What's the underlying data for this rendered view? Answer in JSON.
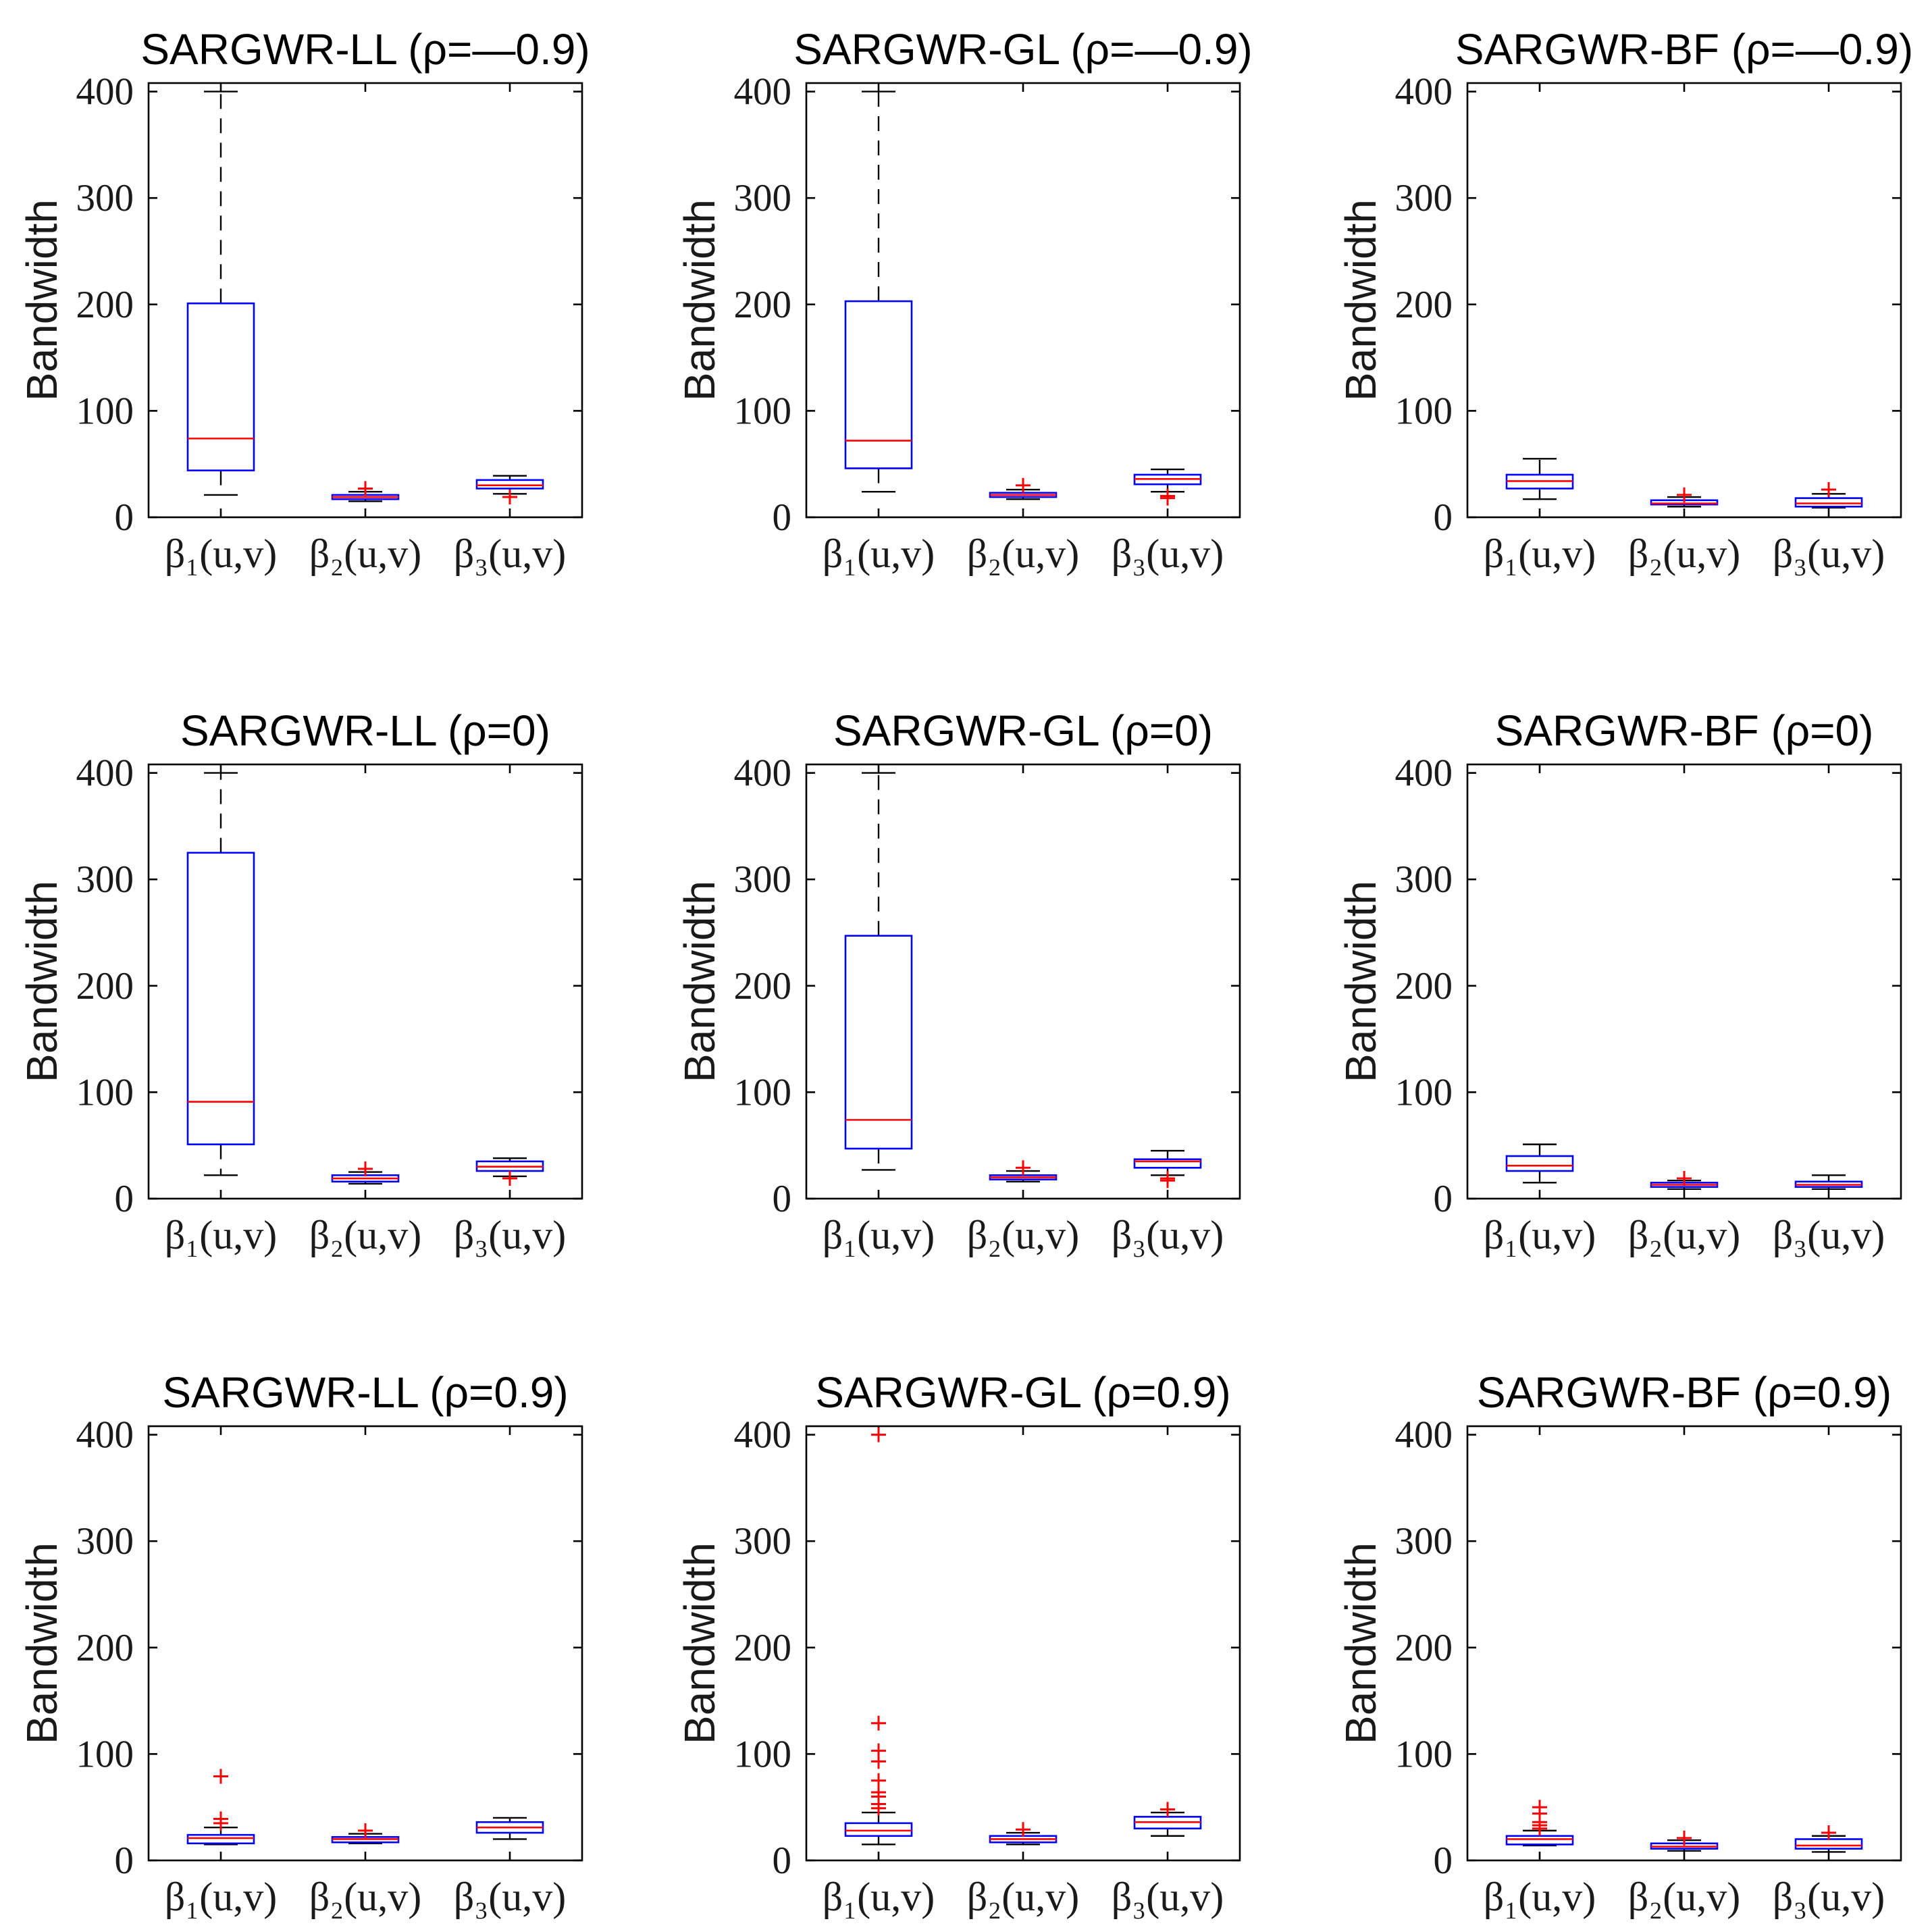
{
  "colors": {
    "box": "#0000FF",
    "median": "#FF0000",
    "whisker": "#000000",
    "outlier": "#FF0000",
    "axes": "#000000",
    "text": "#1A1A1A",
    "background": "#FFFFFF"
  },
  "chart_data": [
    {
      "type": "boxplot",
      "title": "SARGWR-LL (ρ=—0.9)",
      "xlabel": "",
      "ylabel": "Bandwidth",
      "categories": [
        "β₁(u,v)",
        "β₂(u,v)",
        "β₃(u,v)"
      ],
      "ylim": [
        0,
        408
      ],
      "yticks": [
        0,
        100,
        200,
        300,
        400
      ],
      "grid": false,
      "boxes": [
        {
          "whisker_low": 21,
          "q1": 44,
          "median": 74,
          "q3": 201,
          "whisker_high": 400,
          "outliers": []
        },
        {
          "whisker_low": 15,
          "q1": 17,
          "median": 19,
          "q3": 21,
          "whisker_high": 24,
          "outliers": [
            27
          ]
        },
        {
          "whisker_low": 22,
          "q1": 27,
          "median": 30,
          "q3": 35,
          "whisker_high": 39,
          "outliers": [
            19
          ]
        }
      ]
    },
    {
      "type": "boxplot",
      "title": "SARGWR-GL (ρ=—0.9)",
      "xlabel": "",
      "ylabel": "Bandwidth",
      "categories": [
        "β₁(u,v)",
        "β₂(u,v)",
        "β₃(u,v)"
      ],
      "ylim": [
        0,
        408
      ],
      "yticks": [
        0,
        100,
        200,
        300,
        400
      ],
      "grid": false,
      "boxes": [
        {
          "whisker_low": 24,
          "q1": 46,
          "median": 72,
          "q3": 203,
          "whisker_high": 400,
          "outliers": []
        },
        {
          "whisker_low": 17,
          "q1": 19,
          "median": 21,
          "q3": 23,
          "whisker_high": 26,
          "outliers": [
            30
          ]
        },
        {
          "whisker_low": 24,
          "q1": 31,
          "median": 36,
          "q3": 40,
          "whisker_high": 45,
          "outliers": [
            20,
            18
          ]
        }
      ]
    },
    {
      "type": "boxplot",
      "title": "SARGWR-BF (ρ=—0.9)",
      "xlabel": "",
      "ylabel": "Bandwidth",
      "categories": [
        "β₁(u,v)",
        "β₂(u,v)",
        "β₃(u,v)"
      ],
      "ylim": [
        0,
        408
      ],
      "yticks": [
        0,
        100,
        200,
        300,
        400
      ],
      "grid": false,
      "boxes": [
        {
          "whisker_low": 17,
          "q1": 27,
          "median": 34,
          "q3": 40,
          "whisker_high": 55,
          "outliers": []
        },
        {
          "whisker_low": 10,
          "q1": 12,
          "median": 13,
          "q3": 16,
          "whisker_high": 19,
          "outliers": [
            21
          ]
        },
        {
          "whisker_low": 9,
          "q1": 10,
          "median": 13,
          "q3": 18,
          "whisker_high": 22,
          "outliers": [
            26
          ]
        }
      ]
    },
    {
      "type": "boxplot",
      "title": "SARGWR-LL (ρ=0)",
      "xlabel": "",
      "ylabel": "Bandwidth",
      "categories": [
        "β₁(u,v)",
        "β₂(u,v)",
        "β₃(u,v)"
      ],
      "ylim": [
        0,
        408
      ],
      "yticks": [
        0,
        100,
        200,
        300,
        400
      ],
      "grid": false,
      "boxes": [
        {
          "whisker_low": 22,
          "q1": 51,
          "median": 91,
          "q3": 325,
          "whisker_high": 400,
          "outliers": []
        },
        {
          "whisker_low": 14,
          "q1": 16,
          "median": 19,
          "q3": 22,
          "whisker_high": 25,
          "outliers": [
            28
          ]
        },
        {
          "whisker_low": 21,
          "q1": 26,
          "median": 30,
          "q3": 35,
          "whisker_high": 38,
          "outliers": [
            19
          ]
        }
      ]
    },
    {
      "type": "boxplot",
      "title": "SARGWR-GL (ρ=0)",
      "xlabel": "",
      "ylabel": "Bandwidth",
      "categories": [
        "β₁(u,v)",
        "β₂(u,v)",
        "β₃(u,v)"
      ],
      "ylim": [
        0,
        408
      ],
      "yticks": [
        0,
        100,
        200,
        300,
        400
      ],
      "grid": false,
      "boxes": [
        {
          "whisker_low": 27,
          "q1": 47,
          "median": 74,
          "q3": 247,
          "whisker_high": 400,
          "outliers": []
        },
        {
          "whisker_low": 16,
          "q1": 18,
          "median": 20,
          "q3": 22,
          "whisker_high": 26,
          "outliers": [
            29
          ]
        },
        {
          "whisker_low": 22,
          "q1": 29,
          "median": 35,
          "q3": 37,
          "whisker_high": 45,
          "outliers": [
            19,
            17
          ]
        }
      ]
    },
    {
      "type": "boxplot",
      "title": "SARGWR-BF (ρ=0)",
      "xlabel": "",
      "ylabel": "Bandwidth",
      "categories": [
        "β₁(u,v)",
        "β₂(u,v)",
        "β₃(u,v)"
      ],
      "ylim": [
        0,
        408
      ],
      "yticks": [
        0,
        100,
        200,
        300,
        400
      ],
      "grid": false,
      "boxes": [
        {
          "whisker_low": 15,
          "q1": 26,
          "median": 31,
          "q3": 40,
          "whisker_high": 51,
          "outliers": []
        },
        {
          "whisker_low": 9,
          "q1": 11,
          "median": 13,
          "q3": 15,
          "whisker_high": 17,
          "outliers": [
            19
          ]
        },
        {
          "whisker_low": 9,
          "q1": 11,
          "median": 13,
          "q3": 16,
          "whisker_high": 22,
          "outliers": []
        }
      ]
    },
    {
      "type": "boxplot",
      "title": "SARGWR-LL (ρ=0.9)",
      "xlabel": "",
      "ylabel": "Bandwidth",
      "categories": [
        "β₁(u,v)",
        "β₂(u,v)",
        "β₃(u,v)"
      ],
      "ylim": [
        0,
        408
      ],
      "yticks": [
        0,
        100,
        200,
        300,
        400
      ],
      "grid": false,
      "boxes": [
        {
          "whisker_low": 15,
          "q1": 16,
          "median": 21,
          "q3": 24,
          "whisker_high": 31,
          "outliers": [
            79,
            39,
            35
          ]
        },
        {
          "whisker_low": 16,
          "q1": 17,
          "median": 20,
          "q3": 22,
          "whisker_high": 25,
          "outliers": [
            28
          ]
        },
        {
          "whisker_low": 20,
          "q1": 26,
          "median": 31,
          "q3": 36,
          "whisker_high": 40,
          "outliers": []
        }
      ]
    },
    {
      "type": "boxplot",
      "title": "SARGWR-GL (ρ=0.9)",
      "xlabel": "",
      "ylabel": "Bandwidth",
      "categories": [
        "β₁(u,v)",
        "β₂(u,v)",
        "β₃(u,v)"
      ],
      "ylim": [
        0,
        408
      ],
      "yticks": [
        0,
        100,
        200,
        300,
        400
      ],
      "grid": false,
      "boxes": [
        {
          "whisker_low": 15,
          "q1": 23,
          "median": 28,
          "q3": 35,
          "whisker_high": 45,
          "outliers": [
            400,
            129,
            103,
            93,
            75,
            64,
            60,
            53,
            49
          ]
        },
        {
          "whisker_low": 15,
          "q1": 17,
          "median": 20,
          "q3": 23,
          "whisker_high": 26,
          "outliers": [
            29
          ]
        },
        {
          "whisker_low": 23,
          "q1": 30,
          "median": 36,
          "q3": 41,
          "whisker_high": 45,
          "outliers": [
            48
          ]
        }
      ]
    },
    {
      "type": "boxplot",
      "title": "SARGWR-BF (ρ=0.9)",
      "xlabel": "",
      "ylabel": "Bandwidth",
      "categories": [
        "β₁(u,v)",
        "β₂(u,v)",
        "β₃(u,v)"
      ],
      "ylim": [
        0,
        408
      ],
      "yticks": [
        0,
        100,
        200,
        300,
        400
      ],
      "grid": false,
      "boxes": [
        {
          "whisker_low": 14,
          "q1": 15,
          "median": 20,
          "q3": 23,
          "whisker_high": 28,
          "outliers": [
            50,
            44,
            36,
            33,
            30
          ]
        },
        {
          "whisker_low": 9,
          "q1": 11,
          "median": 13,
          "q3": 16,
          "whisker_high": 19,
          "outliers": [
            21
          ]
        },
        {
          "whisker_low": 8,
          "q1": 11,
          "median": 14,
          "q3": 20,
          "whisker_high": 23,
          "outliers": [
            26
          ]
        }
      ]
    }
  ]
}
